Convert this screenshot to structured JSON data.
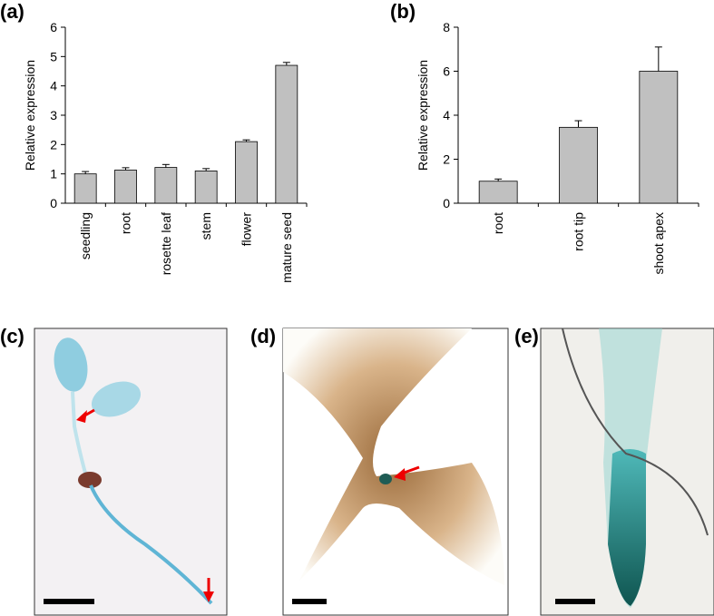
{
  "chart_data": [
    {
      "type": "bar",
      "panel_label": "(a)",
      "ylabel": "Relative expression",
      "categories": [
        "seedling",
        "root",
        "rosette leaf",
        "stem",
        "flower",
        "mature seed"
      ],
      "values": [
        1.0,
        1.13,
        1.22,
        1.1,
        2.1,
        4.7
      ],
      "errors": [
        0.08,
        0.08,
        0.1,
        0.08,
        0.06,
        0.1
      ],
      "color": "#c0c0c0",
      "ylim": [
        0,
        6
      ],
      "yticks": [
        0,
        1,
        2,
        3,
        4,
        5,
        6
      ],
      "grid": false
    },
    {
      "type": "bar",
      "panel_label": "(b)",
      "ylabel": "Relative expression",
      "categories": [
        "root",
        "root tip",
        "shoot apex"
      ],
      "values": [
        1.0,
        3.45,
        6.0
      ],
      "errors": [
        0.1,
        0.3,
        1.1
      ],
      "color": "#c0c0c0",
      "ylim": [
        0,
        8
      ],
      "yticks": [
        0,
        2,
        4,
        6,
        8
      ],
      "grid": false
    }
  ],
  "images": [
    {
      "label": "(c)"
    },
    {
      "label": "(d)"
    },
    {
      "label": "(e)"
    }
  ]
}
